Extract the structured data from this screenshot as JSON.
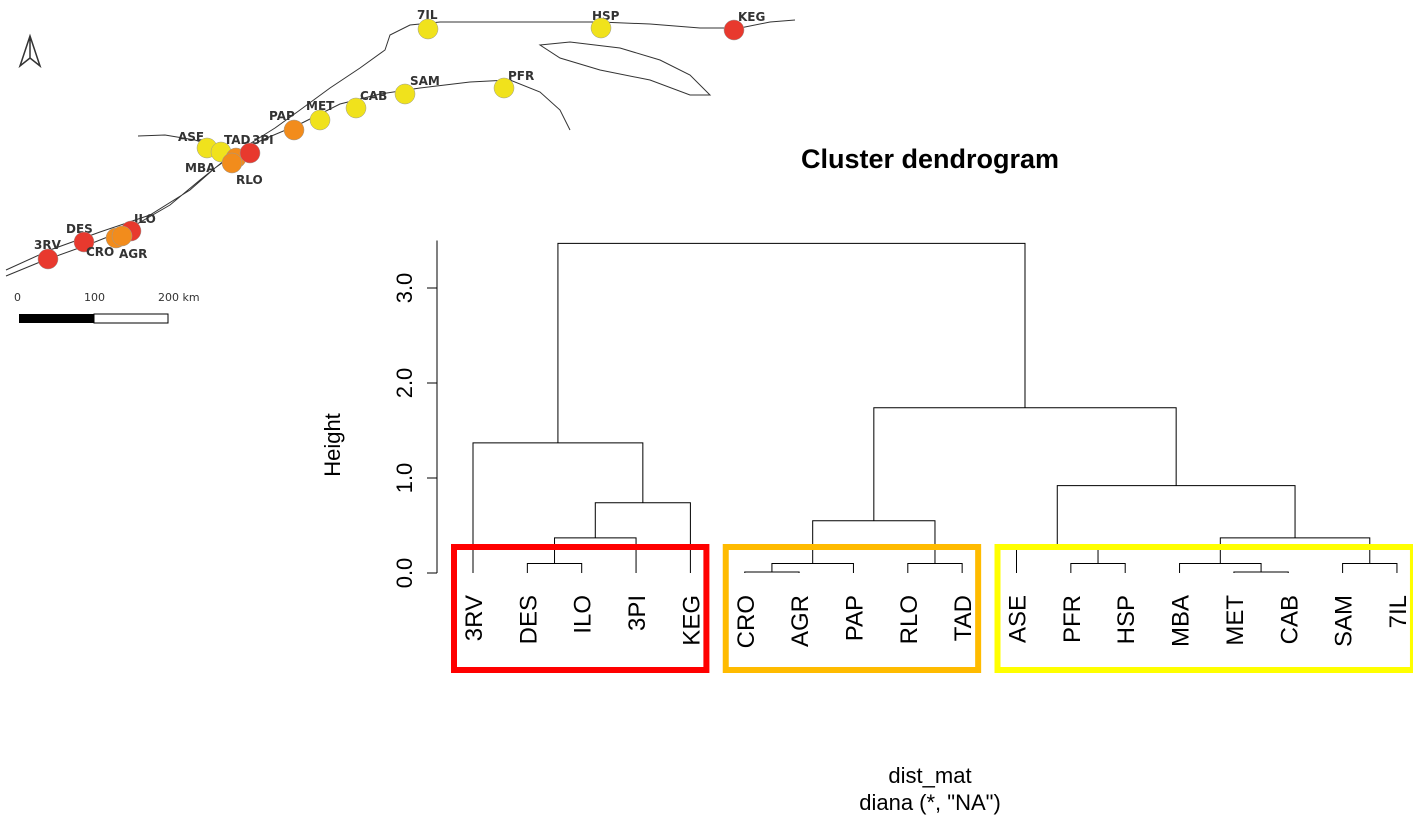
{
  "chart_data": {
    "type": "dendrogram",
    "title": "Cluster dendrogram",
    "ylabel": "Height",
    "xlabel": "dist_mat",
    "subtitle": "diana (*, \"NA\")",
    "leaves": [
      "3RV",
      "DES",
      "ILO",
      "3PI",
      "KEG",
      "CRO",
      "AGR",
      "PAP",
      "RLO",
      "TAD",
      "ASE",
      "PFR",
      "HSP",
      "MBA",
      "MET",
      "CAB",
      "SAM",
      "7IL"
    ],
    "merge": [
      [
        -6,
        -7
      ],
      [
        -15,
        -16
      ],
      [
        -2,
        -3
      ],
      [
        1,
        -8
      ],
      [
        -9,
        -10
      ],
      [
        -12,
        -13
      ],
      [
        -14,
        2
      ],
      [
        -17,
        -18
      ],
      [
        -11,
        6
      ],
      [
        3,
        -4
      ],
      [
        7,
        8
      ],
      [
        4,
        5
      ],
      [
        10,
        -5
      ],
      [
        9,
        11
      ],
      [
        -1,
        13
      ],
      [
        12,
        14
      ],
      [
        15,
        16
      ]
    ],
    "height": [
      0.01,
      0.01,
      0.1,
      0.1,
      0.1,
      0.1,
      0.1,
      0.1,
      0.25,
      0.37,
      0.37,
      0.55,
      0.74,
      0.92,
      1.37,
      1.74,
      3.47
    ],
    "ylim": [
      0,
      3.5
    ],
    "yticks": [
      {
        "value": 0,
        "label": "0.0"
      },
      {
        "value": 1,
        "label": "1.0"
      },
      {
        "value": 2,
        "label": "2.0"
      },
      {
        "value": 3,
        "label": "3.0"
      }
    ],
    "cluster_sizes": [
      5,
      5,
      8
    ],
    "cluster_colors": [
      "#ff0000",
      "#ffbb00",
      "#ffff00"
    ]
  },
  "map": {
    "sites": [
      {
        "label": "7IL",
        "color": "#f0e21c"
      },
      {
        "label": "HSP",
        "color": "#f0e21c"
      },
      {
        "label": "KEG",
        "color": "#e8392e"
      },
      {
        "label": "PFR",
        "color": "#f0e21c"
      },
      {
        "label": "SAM",
        "color": "#f0e21c"
      },
      {
        "label": "CAB",
        "color": "#f0e21c"
      },
      {
        "label": "MET",
        "color": "#f0e21c"
      },
      {
        "label": "PAP",
        "color": "#f28c1c"
      },
      {
        "label": "ASE",
        "color": "#f0e21c"
      },
      {
        "label": "MBA",
        "color": "#f0e21c"
      },
      {
        "label": "TAD",
        "color": "#f28c1c"
      },
      {
        "label": "RLO",
        "color": "#f28c1c"
      },
      {
        "label": "3PI",
        "color": "#e8392e"
      },
      {
        "label": "ILO",
        "color": "#e8392e"
      },
      {
        "label": "DES",
        "color": "#e8392e"
      },
      {
        "label": "CRO",
        "color": "#f28c1c"
      },
      {
        "label": "AGR",
        "color": "#f28c1c"
      },
      {
        "label": "3RV",
        "color": "#e8392e"
      }
    ],
    "scale_labels": [
      "0",
      "100",
      "200 km"
    ]
  }
}
